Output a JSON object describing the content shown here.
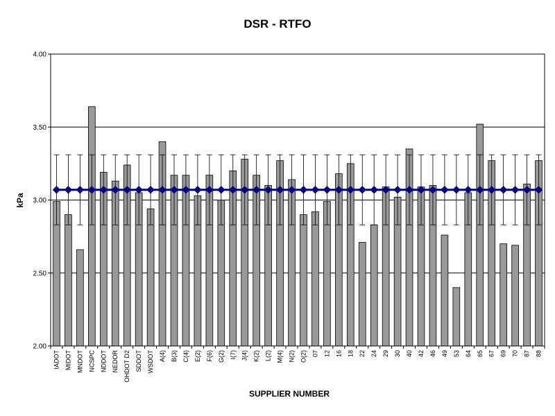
{
  "chart_data": {
    "type": "bar",
    "title": "DSR - RTFO",
    "xlabel": "SUPPLIER NUMBER",
    "ylabel": "kPa",
    "ylim": [
      2.0,
      4.0
    ],
    "yticks": [
      "2.00",
      "2.50",
      "3.00",
      "3.50",
      "4.00"
    ],
    "grid": true,
    "legend": "none",
    "categories": [
      "IADOT",
      "MIDOT",
      "MNDOT",
      "NCSPC",
      "NDDOT",
      "NEDOR",
      "OHDOT D2",
      "SDDOT",
      "WSDOT",
      "A(4)",
      "B(3)",
      "C(4)",
      "E(2)",
      "F(6)",
      "G(2)",
      "I(7)",
      "J(4)",
      "K(2)",
      "L(2)",
      "M(4)",
      "N(2)",
      "O(2)",
      "07",
      "12",
      "16",
      "18",
      "22",
      "24",
      "29",
      "30",
      "40",
      "42",
      "46",
      "49",
      "53",
      "64",
      "65",
      "67",
      "69",
      "70",
      "87",
      "88"
    ],
    "series": [
      {
        "type": "bar",
        "values": [
          2.99,
          2.9,
          2.66,
          3.64,
          3.19,
          3.13,
          3.24,
          3.05,
          2.94,
          3.4,
          3.17,
          3.17,
          3.03,
          3.17,
          3.0,
          3.2,
          3.28,
          3.17,
          3.1,
          3.27,
          3.14,
          2.9,
          2.92,
          2.99,
          3.18,
          3.25,
          2.71,
          2.83,
          3.09,
          3.02,
          3.35,
          3.09,
          3.1,
          2.76,
          2.4,
          3.05,
          3.52,
          3.27,
          2.7,
          2.69,
          3.11,
          3.27
        ],
        "color": "#999999"
      },
      {
        "type": "line",
        "values": [
          3.07,
          3.07,
          3.07,
          3.07,
          3.07,
          3.07,
          3.07,
          3.07,
          3.07,
          3.07,
          3.07,
          3.07,
          3.07,
          3.07,
          3.07,
          3.07,
          3.07,
          3.07,
          3.07,
          3.07,
          3.07,
          3.07,
          3.07,
          3.07,
          3.07,
          3.07,
          3.07,
          3.07,
          3.07,
          3.07,
          3.07,
          3.07,
          3.07,
          3.07,
          3.07,
          3.07,
          3.07,
          3.07,
          3.07,
          3.07,
          3.07,
          3.07
        ],
        "error_bar": [
          2.83,
          3.31
        ],
        "color": "#000080",
        "marker": "diamond"
      }
    ]
  }
}
